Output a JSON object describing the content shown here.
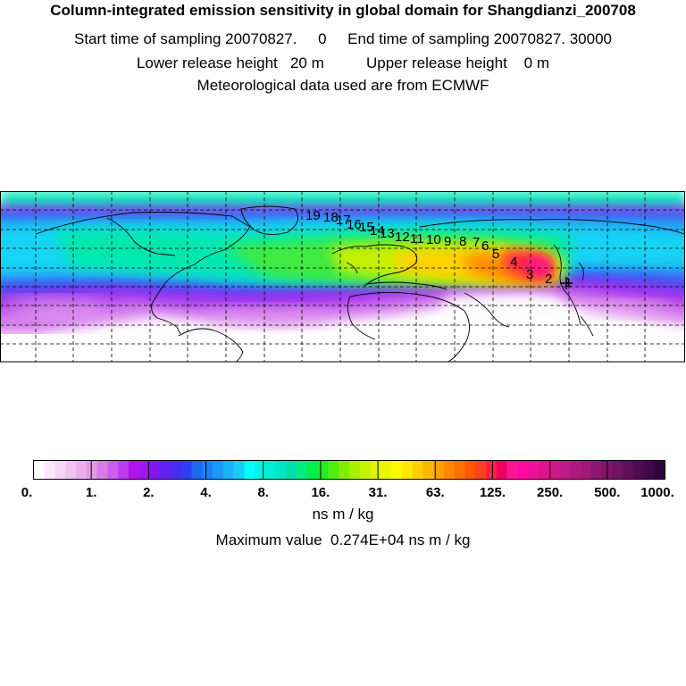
{
  "header": {
    "title": "Column-integrated emission sensitivity in global domain for Shangdianzi_200708",
    "sampling_line": "Start time of sampling 20070827.     0     End time of sampling 20070827. 30000",
    "release_line": "Lower release height   20 m          Upper release height    0 m",
    "met_line": "Meteorological data used are from ECMWF"
  },
  "map": {
    "trajectory_labels": [
      "1",
      "2",
      "3",
      "4",
      "5",
      "6",
      "7",
      "8",
      "9",
      "10",
      "11",
      "12",
      "13",
      "14",
      "15",
      "16",
      "17",
      "18",
      "19"
    ],
    "colors": {
      "border": "#000000",
      "grid": "#000000",
      "coast": "#000000",
      "background": "#ffffff"
    }
  },
  "colorbar": {
    "tick_labels": [
      "0.",
      "1.",
      "2.",
      "4.",
      "8.",
      "16.",
      "31.",
      "63.",
      "125.",
      "250.",
      "500.",
      "1000."
    ],
    "colors": [
      "#ffffff",
      "#fbe9fb",
      "#f6d6f6",
      "#f1c2f1",
      "#ecaeec",
      "#e19ae6",
      "#d67ee6",
      "#cc5cee",
      "#bf3bf1",
      "#b012f0",
      "#9f16f4",
      "#7f17f0",
      "#6020f0",
      "#4a2cf0",
      "#3040f0",
      "#1e66f4",
      "#1a80f6",
      "#1a99f8",
      "#18b4f8",
      "#18ccf8",
      "#00ffff",
      "#00f5e8",
      "#00eed4",
      "#00e6c0",
      "#00e0aa",
      "#00ee80",
      "#00f050",
      "#20ee20",
      "#50ee10",
      "#80ee00",
      "#a8f000",
      "#c4f200",
      "#dcf400",
      "#eef400",
      "#fafa00",
      "#ffe800",
      "#ffd000",
      "#ffb800",
      "#ffa000",
      "#ff8800",
      "#ff7000",
      "#ff5800",
      "#ff4020",
      "#ff2040",
      "#f00060",
      "#ff1493",
      "#ff0aa0",
      "#f0109a",
      "#e0108f",
      "#d01888",
      "#c01a88",
      "#b01880",
      "#a01878",
      "#901670",
      "#801468",
      "#701262",
      "#600e58",
      "#500a50",
      "#400848",
      "#300440"
    ]
  },
  "legend": {
    "unit_label": "ns m / kg",
    "max_value_line": "Maximum value  0.274E+04 ns m / kg"
  }
}
